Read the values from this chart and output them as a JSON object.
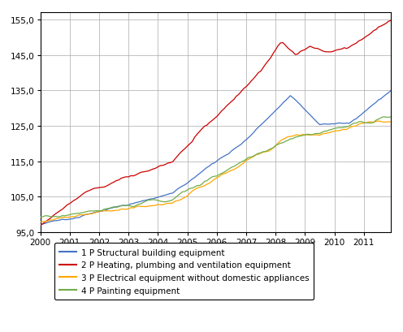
{
  "ylim": [
    95.0,
    157.0
  ],
  "yticks": [
    95.0,
    105.0,
    115.0,
    125.0,
    135.0,
    145.0,
    155.0
  ],
  "ytick_labels": [
    "95,0",
    "105,0",
    "115,0",
    "125,0",
    "135,0",
    "145,0",
    "155,0"
  ],
  "xlim": [
    2000,
    2011.92
  ],
  "xtick_positions": [
    2000,
    2001,
    2002,
    2003,
    2004,
    2005,
    2006,
    2007,
    2008,
    2009,
    2010,
    2011
  ],
  "xtick_labels": [
    "2000",
    "2001",
    "2002",
    "2003",
    "2004",
    "2005",
    "2006",
    "2007",
    "2008",
    "2009",
    "2010",
    "2011"
  ],
  "colors": {
    "blue": "#4472C4",
    "red": "#CC0000",
    "orange": "#FFA500",
    "green": "#70AD47"
  },
  "legend": [
    {
      "label": "1 P Structural building equipment",
      "color": "#4472C4"
    },
    {
      "label": "2 P Heating, plumbing and ventilation equipment",
      "color": "#CC0000"
    },
    {
      "label": "3 P Electrical equipment without domestic appliances",
      "color": "#FFA500"
    },
    {
      "label": "4 P Painting equipment",
      "color": "#70AD47"
    }
  ],
  "n_points": 144,
  "background_color": "#ffffff",
  "grid_color": "#aaaaaa",
  "tick_color": "#000000"
}
